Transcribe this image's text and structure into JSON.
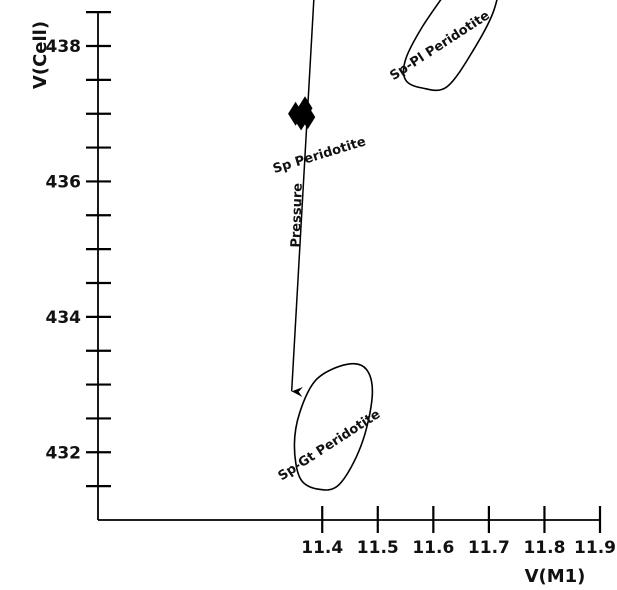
{
  "chart_data": {
    "type": "scatter",
    "xlabel": "V(M1)",
    "ylabel": "V(Cell)",
    "xlim": [
      11.0,
      11.9
    ],
    "ylim": [
      431.0,
      438.0
    ],
    "x_tick_labels": [
      {
        "value": 11.4,
        "text": "11.4"
      },
      {
        "value": 11.5,
        "text": "11.5"
      },
      {
        "value": 11.6,
        "text": "11.6"
      },
      {
        "value": 11.7,
        "text": "11.7"
      },
      {
        "value": 11.8,
        "text": "11.8"
      },
      {
        "value": 11.9,
        "text": "11.9"
      }
    ],
    "y_tick_labels": [
      {
        "value": 432,
        "text": "432"
      },
      {
        "value": 434,
        "text": "434"
      },
      {
        "value": 436,
        "text": "436"
      },
      {
        "value": 438,
        "text": "438"
      }
    ],
    "x_minor_ticks": [
      11.4,
      11.5,
      11.6,
      11.7,
      11.8,
      11.9
    ],
    "y_minor_ticks": [
      431.5,
      432,
      432.5,
      433,
      433.5,
      434,
      434.5,
      435,
      435.5,
      436,
      436.5,
      437,
      437.5,
      438,
      438.5,
      439,
      439.5
    ],
    "grid": false,
    "series": [
      {
        "marker": "diamond",
        "color": "#000000",
        "points": [
          {
            "x": 11.352,
            "y": 437.0
          },
          {
            "x": 11.362,
            "y": 436.93
          },
          {
            "x": 11.369,
            "y": 437.08
          },
          {
            "x": 11.374,
            "y": 436.95
          }
        ]
      }
    ],
    "fields": [
      {
        "label": "Sp-Pl Peridotite",
        "label_rotation": -33,
        "label_anchor": {
          "x": 11.612,
          "y": 438.0
        },
        "outline": [
          [
            11.55,
            437.8
          ],
          [
            11.58,
            438.28
          ],
          [
            11.63,
            438.88
          ],
          [
            11.67,
            439.38
          ],
          [
            11.7,
            439.42
          ],
          [
            11.72,
            439.12
          ],
          [
            11.71,
            438.55
          ],
          [
            11.675,
            437.98
          ],
          [
            11.625,
            437.4
          ],
          [
            11.58,
            437.38
          ],
          [
            11.55,
            437.5
          ]
        ]
      },
      {
        "label": "Sp-Gt Peridotite",
        "label_rotation": -33,
        "label_anchor": {
          "x": 11.413,
          "y": 432.1
        },
        "outline": [
          [
            11.39,
            433.08
          ],
          [
            11.445,
            433.3
          ],
          [
            11.48,
            433.22
          ],
          [
            11.49,
            432.82
          ],
          [
            11.47,
            432.1
          ],
          [
            11.43,
            431.52
          ],
          [
            11.39,
            431.46
          ],
          [
            11.36,
            431.62
          ],
          [
            11.35,
            432.1
          ],
          [
            11.36,
            432.6
          ]
        ]
      }
    ],
    "annotations": [
      {
        "text": "Sp Peridotite",
        "x": 11.395,
        "y": 436.38,
        "rotation": -17
      },
      {
        "text": "Pressure",
        "x": 11.355,
        "y": 435.5,
        "rotation": -88
      }
    ],
    "arrow": {
      "from": {
        "x": 11.385,
        "y": 438.7
      },
      "to": {
        "x": 11.345,
        "y": 432.9
      }
    }
  }
}
